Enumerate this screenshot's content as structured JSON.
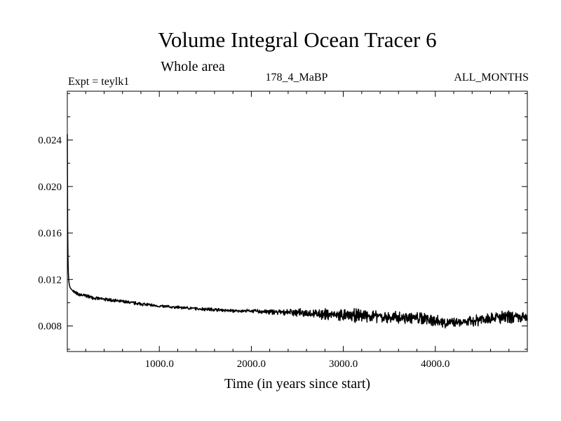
{
  "chart_data": {
    "type": "line",
    "title": "Volume Integral Ocean Tracer 6",
    "subtitle": "Whole area",
    "experiment_label": "Expt = teylk1",
    "run_label": "178_4_MaBP",
    "period_label": "ALL_MONTHS",
    "xlabel": "Time (in years since start)",
    "ylabel": "",
    "xlim": [
      0,
      5000
    ],
    "ylim": [
      0.0058,
      0.0282
    ],
    "x_major_ticks": [
      1000,
      2000,
      3000,
      4000
    ],
    "x_tick_labels": [
      "1000.0",
      "2000.0",
      "3000.0",
      "4000.0"
    ],
    "x_minor_step": 200,
    "y_major_ticks": [
      0.008,
      0.012,
      0.016,
      0.02,
      0.024
    ],
    "y_tick_labels": [
      "0.008",
      "0.012",
      "0.016",
      "0.020",
      "0.024"
    ],
    "y_minor_step": 0.002,
    "grid": false,
    "series": [
      {
        "name": "Tracer 6",
        "color": "#000000",
        "noise_amplitude": [
          [
            0,
            0.0002
          ],
          [
            2000,
            0.0002
          ],
          [
            2400,
            0.0004
          ],
          [
            3000,
            0.0008
          ],
          [
            4000,
            0.0008
          ],
          [
            4300,
            0.0004
          ],
          [
            4400,
            0.0007
          ],
          [
            5000,
            0.0009
          ]
        ],
        "x": [
          0,
          2,
          5,
          10,
          15,
          20,
          30,
          50,
          80,
          120,
          200,
          300,
          400,
          500,
          600,
          700,
          800,
          900,
          1000,
          1200,
          1400,
          1600,
          1800,
          2000,
          2200,
          2400,
          2600,
          2800,
          3000,
          3200,
          3400,
          3600,
          3800,
          4000,
          4100,
          4200,
          4300,
          4400,
          4500,
          4600,
          4800,
          5000
        ],
        "y": [
          0.0245,
          0.0185,
          0.0148,
          0.0128,
          0.012,
          0.0116,
          0.0113,
          0.0111,
          0.0109,
          0.0107,
          0.0106,
          0.0104,
          0.0103,
          0.0102,
          0.0101,
          0.01,
          0.0099,
          0.0098,
          0.0097,
          0.0096,
          0.0095,
          0.0094,
          0.0093,
          0.0093,
          0.0092,
          0.0092,
          0.0091,
          0.009,
          0.0089,
          0.0089,
          0.0088,
          0.0087,
          0.0087,
          0.0085,
          0.0083,
          0.0083,
          0.0083,
          0.0084,
          0.0086,
          0.0087,
          0.0087,
          0.0087
        ]
      }
    ]
  }
}
